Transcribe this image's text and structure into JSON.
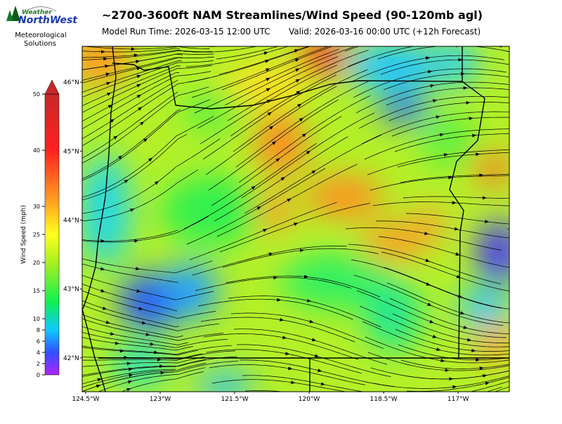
{
  "header": {
    "title": "~2700-3600ft NAM Streamlines/Wind Speed (90-120mb agl)",
    "run_time": "Model Run Time: 2026-03-15 12:00 UTC",
    "valid": "Valid: 2026-03-16 00:00 UTC  (+12h Forecast)"
  },
  "logo": {
    "word1": "Weather",
    "word2": "NorthWest",
    "tagline1": "Meteorological",
    "tagline2": "Solutions"
  },
  "colorbar": {
    "label": "Wind Speed (mph)",
    "lim": [
      0,
      50
    ],
    "ticks": [
      0,
      2,
      4,
      6,
      8,
      10,
      15,
      20,
      25,
      30,
      40,
      50
    ]
  },
  "map": {
    "lonlim": [
      -124.57,
      -115.97
    ],
    "latlim": [
      41.51,
      46.52
    ],
    "lat_ticks": [
      {
        "value": 46,
        "label": "46°N"
      },
      {
        "value": 45,
        "label": "45°N"
      },
      {
        "value": 44,
        "label": "44°N"
      },
      {
        "value": 43,
        "label": "43°N"
      },
      {
        "value": 42,
        "label": "42°N"
      }
    ],
    "lon_ticks": [
      {
        "value": -124.5,
        "label": "124.5°W"
      },
      {
        "value": -123,
        "label": "123°W"
      },
      {
        "value": -121.5,
        "label": "121.5°W"
      },
      {
        "value": -120,
        "label": "120°W"
      },
      {
        "value": -118.5,
        "label": "118.5°W"
      },
      {
        "value": -117,
        "label": "117°W"
      }
    ]
  }
}
